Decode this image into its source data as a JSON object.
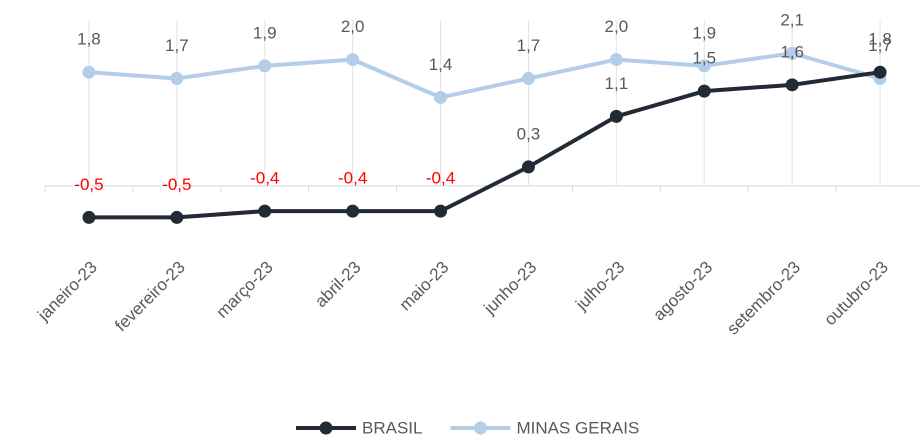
{
  "chart_data": {
    "type": "line",
    "categories": [
      "janeiro-23",
      "fevereiro-23",
      "março-23",
      "abril-23",
      "maio-23",
      "junho-23",
      "julho-23",
      "agosto-23",
      "setembro-23",
      "outubro-23"
    ],
    "series": [
      {
        "name": "BRASIL",
        "color": "#222a35",
        "values": [
          -0.5,
          -0.5,
          -0.4,
          -0.4,
          -0.4,
          0.3,
          1.1,
          1.5,
          1.6,
          1.8
        ],
        "value_labels": [
          "-0,5",
          "-0,5",
          "-0,4",
          "-0,4",
          "-0,4",
          "0,3",
          "1,1",
          "1,5",
          "1,6",
          "1,8"
        ]
      },
      {
        "name": "MINAS GERAIS",
        "color": "#b4cde8",
        "values": [
          1.8,
          1.7,
          1.9,
          2.0,
          1.4,
          1.7,
          2.0,
          1.9,
          2.1,
          1.7
        ],
        "value_labels": [
          "1,8",
          "1,7",
          "1,9",
          "2,0",
          "1,4",
          "1,7",
          "2,0",
          "1,9",
          "2,1",
          "1,7"
        ]
      }
    ],
    "negative_label_color": "#ff0000",
    "ylim": [
      -1,
      2.5
    ],
    "legend": "bottom"
  }
}
